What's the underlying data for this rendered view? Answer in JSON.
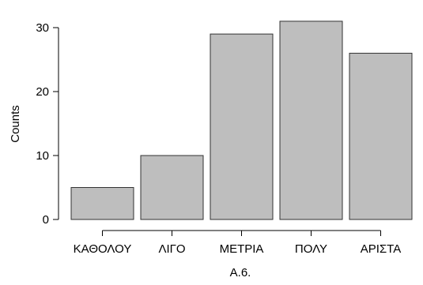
{
  "chart_data": {
    "type": "bar",
    "categories": [
      "ΚΑΘΟΛΟΥ",
      "ΛΙΓΟ",
      "ΜΕΤΡΙΑ",
      "ΠΟΛΥ",
      "ΑΡΙΣΤΑ"
    ],
    "values": [
      5,
      10,
      29,
      31,
      26
    ],
    "xlabel": "Α.6.",
    "ylabel": "Counts",
    "ylim": [
      0,
      32
    ],
    "yticks": [
      "0",
      "10",
      "20",
      "30"
    ],
    "grid": false,
    "bar_color": "#bebebe",
    "bar_edge_color": "#333333"
  }
}
